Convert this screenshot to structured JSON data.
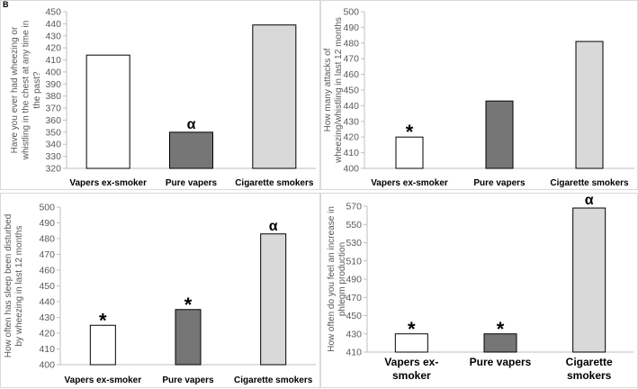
{
  "panel_label": "B",
  "colors": {
    "vapers_ex_smoker": "#ffffff",
    "pure_vapers": "#767676",
    "cigarette_smokers": "#d9d9d9",
    "bar_stroke": "#000000",
    "axis": "#bfbfbf"
  },
  "chart_data": [
    {
      "type": "bar",
      "title": "",
      "xlabel": "",
      "ylabel_lines": [
        "Have you ever had wheezing or",
        "whistling in the chest at any time in",
        "the past?"
      ],
      "categories": [
        "Vapers ex-smoker",
        "Pure vapers",
        "Cigarette smokers"
      ],
      "category_lines": [
        [
          "Vapers ex-smoker"
        ],
        [
          "Pure vapers"
        ],
        [
          "Cigarette smokers"
        ]
      ],
      "values": [
        414,
        350,
        439
      ],
      "annotations": [
        "",
        "α",
        ""
      ],
      "ylim": [
        320,
        450
      ],
      "yticks": [
        320,
        330,
        340,
        350,
        360,
        370,
        380,
        390,
        400,
        410,
        420,
        430,
        440,
        450
      ],
      "grid": false
    },
    {
      "type": "bar",
      "title": "",
      "xlabel": "",
      "ylabel_lines": [
        "How many attacks of",
        "wheezing/whistling in last 12 months"
      ],
      "categories": [
        "Vapers ex-smoker",
        "Pure vapers",
        "Cigarette smokers"
      ],
      "category_lines": [
        [
          "Vapers ex-smoker"
        ],
        [
          "Pure vapers"
        ],
        [
          "Cigarette smokers"
        ]
      ],
      "values": [
        420,
        443,
        481
      ],
      "annotations": [
        "*",
        "",
        ""
      ],
      "ylim": [
        400,
        500
      ],
      "yticks": [
        400,
        410,
        420,
        430,
        440,
        450,
        460,
        470,
        480,
        490,
        500
      ],
      "grid": false
    },
    {
      "type": "bar",
      "title": "",
      "xlabel": "",
      "ylabel_lines": [
        "How often has sleep been disturbed",
        "by wheezing in last 12 months"
      ],
      "categories": [
        "Vapers ex-smoker",
        "Pure vapers",
        "Cigarette smokers"
      ],
      "category_lines": [
        [
          "Vapers ex-smoker"
        ],
        [
          "Pure vapers"
        ],
        [
          "Cigarette smokers"
        ]
      ],
      "values": [
        425,
        435,
        483
      ],
      "annotations": [
        "*",
        "*",
        "α"
      ],
      "ylim": [
        400,
        500
      ],
      "yticks": [
        400,
        410,
        420,
        430,
        440,
        450,
        460,
        470,
        480,
        490,
        500
      ],
      "grid": false
    },
    {
      "type": "bar",
      "title": "",
      "xlabel": "",
      "ylabel_lines": [
        "How often do you feel an increase in",
        "phlegm production"
      ],
      "categories": [
        "Vapers ex-smoker",
        "Pure vapers",
        "Cigarette smokers"
      ],
      "category_lines": [
        [
          "Vapers ex-",
          "smoker"
        ],
        [
          "Pure vapers"
        ],
        [
          "Cigarette",
          "smokers"
        ]
      ],
      "values": [
        430,
        430,
        568
      ],
      "annotations": [
        "*",
        "*",
        "α"
      ],
      "ylim": [
        410,
        570
      ],
      "yticks": [
        410,
        430,
        450,
        470,
        490,
        510,
        530,
        550,
        570
      ],
      "grid": false
    }
  ]
}
